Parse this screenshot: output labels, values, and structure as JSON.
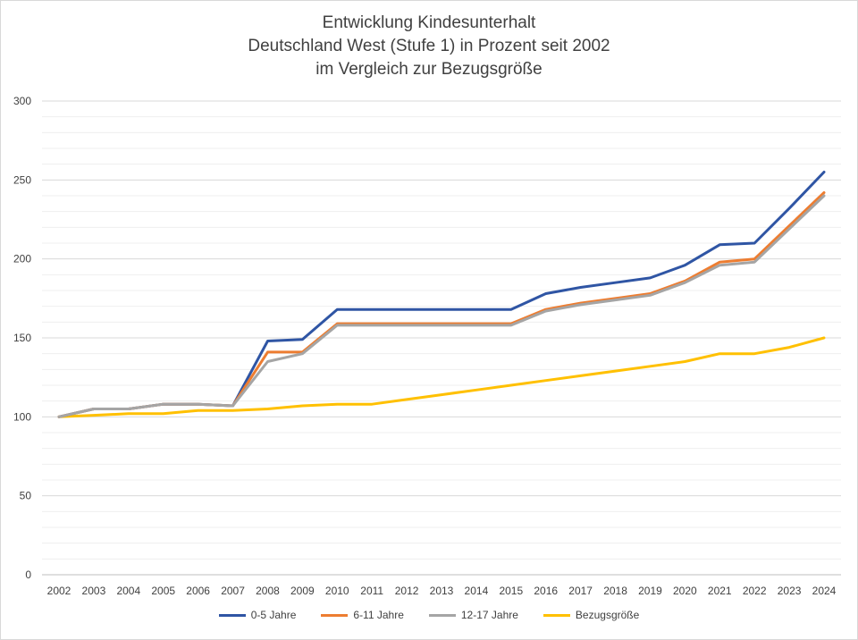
{
  "chart_data": {
    "type": "line",
    "title_lines": [
      "Entwicklung Kindesunterhalt",
      "Deutschland West (Stufe 1) in Prozent seit 2002",
      "im Vergleich zur Bezugsgröße"
    ],
    "xlabel": "",
    "ylabel": "",
    "ylim": [
      0,
      300
    ],
    "yticks": [
      0,
      50,
      100,
      150,
      200,
      250,
      300
    ],
    "grid": true,
    "minor_grid": true,
    "legend_position": "bottom",
    "x": [
      "2002",
      "2003",
      "2004",
      "2005",
      "2006",
      "2007",
      "2008",
      "2009",
      "2010",
      "2011",
      "2012",
      "2013",
      "2014",
      "2015",
      "2016",
      "2017",
      "2018",
      "2019",
      "2020",
      "2021",
      "2022",
      "2023",
      "2024"
    ],
    "series": [
      {
        "name": "0-5 Jahre",
        "color": "#2f55a4",
        "values": [
          100,
          105,
          105,
          108,
          108,
          107,
          148,
          149,
          168,
          168,
          168,
          168,
          168,
          168,
          178,
          182,
          185,
          188,
          196,
          209,
          210,
          232,
          255
        ]
      },
      {
        "name": "6-11 Jahre",
        "color": "#ed7d31",
        "values": [
          100,
          105,
          105,
          108,
          108,
          107,
          141,
          141,
          159,
          159,
          159,
          159,
          159,
          159,
          168,
          172,
          175,
          178,
          186,
          198,
          200,
          221,
          242
        ]
      },
      {
        "name": "12-17 Jahre",
        "color": "#a5a5a5",
        "values": [
          100,
          105,
          105,
          108,
          108,
          107,
          135,
          140,
          158,
          158,
          158,
          158,
          158,
          158,
          167,
          171,
          174,
          177,
          185,
          196,
          198,
          219,
          240
        ]
      },
      {
        "name": "Bezugsgröße",
        "color": "#ffc000",
        "values": [
          100,
          101,
          102,
          102,
          104,
          104,
          105,
          107,
          108,
          108,
          111,
          114,
          117,
          120,
          123,
          126,
          129,
          132,
          135,
          140,
          140,
          144,
          150
        ]
      }
    ]
  }
}
